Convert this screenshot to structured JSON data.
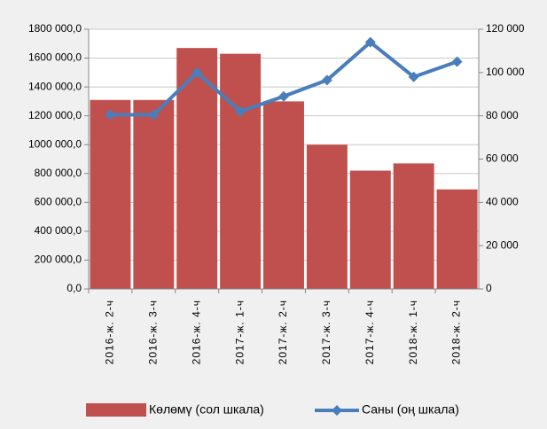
{
  "chart_data": {
    "type": "bar_line",
    "categories": [
      "2016-ж. 2-ч",
      "2016-ж. 3-ч",
      "2016-ж. 4-ч",
      "2017-ж. 1-ч",
      "2017-ж. 2-ч",
      "2017-ж. 3-ч",
      "2017-ж. 4-ч",
      "2018-ж. 1-ч",
      "2018-ж. 2-ч"
    ],
    "series": [
      {
        "name": "Көлөмү (сол шкала)",
        "color": "#c0504d",
        "type": "bar",
        "values": [
          1310000,
          1310000,
          1670000,
          1630000,
          1300000,
          1000000,
          820000,
          870000,
          690000
        ]
      },
      {
        "name": "Саны (оң шкала)",
        "color": "#4a7ebb",
        "type": "line",
        "axis": "y2",
        "values": [
          80500,
          80500,
          100000,
          82000,
          89000,
          96500,
          114000,
          98000,
          105000
        ]
      }
    ],
    "ylim": [
      0,
      1800000
    ],
    "yticks": [
      {
        "value": 0,
        "label": "0,0"
      },
      {
        "value": 200000,
        "label": "200 000,0"
      },
      {
        "value": 400000,
        "label": "400 000,0"
      },
      {
        "value": 600000,
        "label": "600 000,0"
      },
      {
        "value": 800000,
        "label": "800 000,0"
      },
      {
        "value": 1000000,
        "label": "1000 000,0"
      },
      {
        "value": 1200000,
        "label": "1200 000,0"
      },
      {
        "value": 1400000,
        "label": "1400 000,0"
      },
      {
        "value": 1600000,
        "label": "1600 000,0"
      },
      {
        "value": 1800000,
        "label": "1800 000,0"
      }
    ],
    "y2lim": [
      0,
      120000
    ],
    "y2ticks": [
      0,
      {
        "value": 20000,
        "label": "20 000"
      },
      {
        "value": 40000,
        "label": "40 000"
      },
      {
        "value": 60000,
        "label": "60 000"
      },
      {
        "value": 80000,
        "label": "80 000"
      },
      {
        "value": 100000,
        "label": "100 000"
      },
      {
        "value": 120000,
        "label": "120 000"
      }
    ],
    "grid": true,
    "legend": "bottom"
  }
}
